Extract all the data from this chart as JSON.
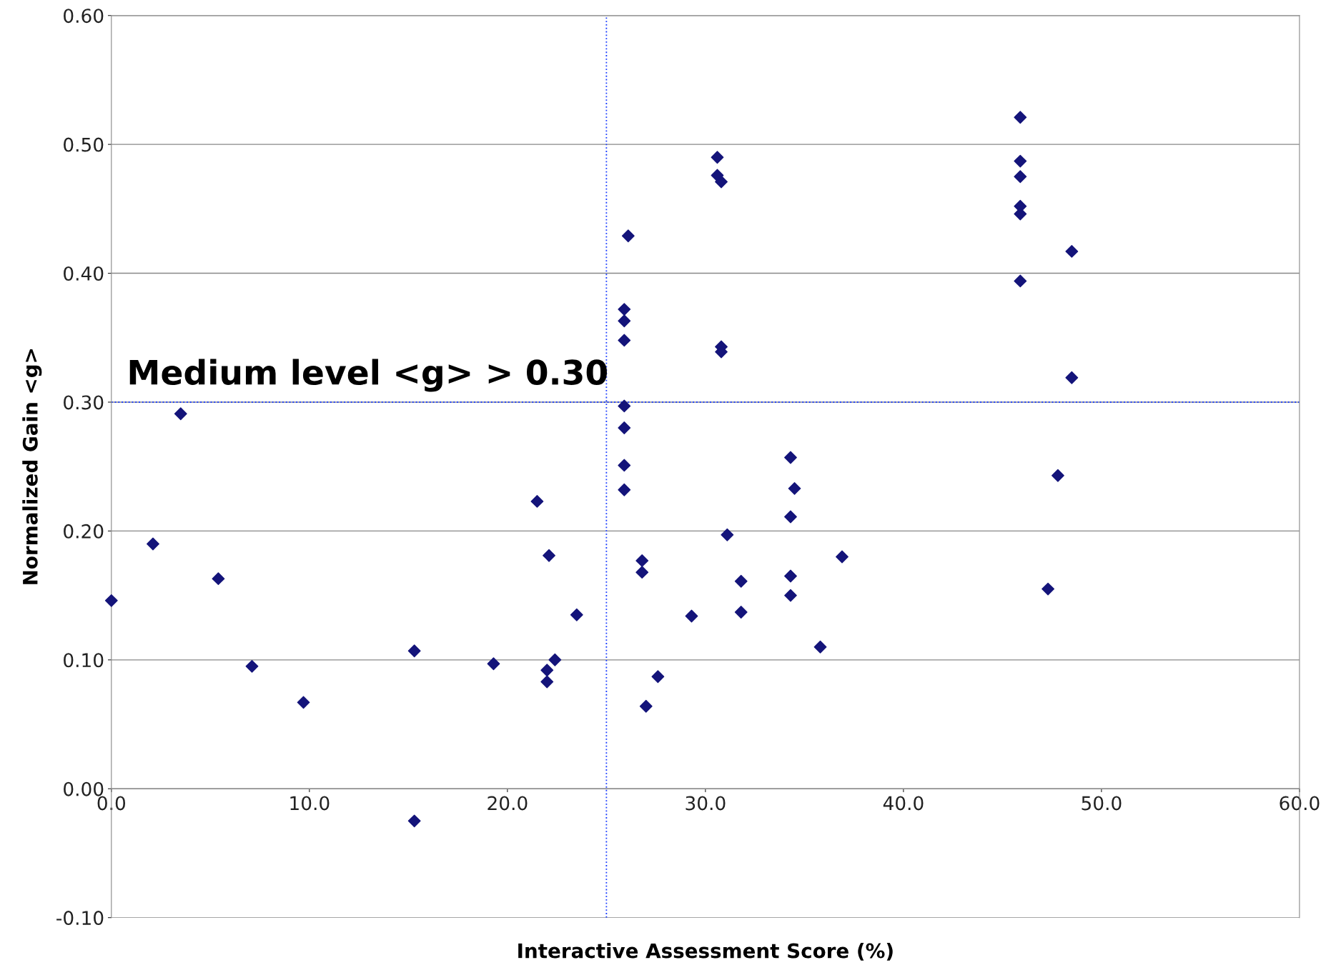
{
  "chart_data": {
    "type": "scatter",
    "xlabel": "Interactive Assessment Score (%)",
    "ylabel": "Normalized Gain <g>",
    "x": [
      0,
      2.1,
      3.5,
      5.4,
      7.1,
      9.7,
      15.3,
      15.3,
      19.3,
      21.5,
      22.1,
      22.0,
      22.0,
      22.4,
      23.5,
      26.1,
      25.9,
      25.9,
      25.9,
      25.9,
      25.9,
      25.9,
      25.9,
      26.8,
      26.8,
      27.0,
      27.6,
      29.3,
      30.6,
      30.6,
      30.7,
      30.8,
      30.8,
      30.8,
      31.1,
      31.8,
      31.8,
      34.3,
      34.5,
      34.3,
      34.3,
      34.3,
      35.8,
      36.9,
      45.9,
      45.9,
      45.9,
      45.9,
      45.9,
      45.9,
      48.5,
      48.5,
      47.8,
      47.3
    ],
    "values": [
      0.146,
      0.19,
      0.291,
      0.163,
      0.095,
      0.067,
      0.107,
      -0.025,
      0.097,
      0.223,
      0.181,
      0.092,
      0.083,
      0.1,
      0.135,
      0.429,
      0.372,
      0.363,
      0.348,
      0.297,
      0.28,
      0.251,
      0.232,
      0.177,
      0.168,
      0.064,
      0.087,
      0.134,
      0.49,
      0.476,
      null,
      0.471,
      0.343,
      0.339,
      0.197,
      0.161,
      0.137,
      0.257,
      0.233,
      0.211,
      0.165,
      0.15,
      0.11,
      0.18,
      0.521,
      0.487,
      0.475,
      0.452,
      0.446,
      0.394,
      0.417,
      0.319,
      0.243,
      0.155
    ],
    "color": "#14147a",
    "marker": "diamond",
    "xlim": [
      0,
      60
    ],
    "xticks": [
      {
        "value": 0,
        "label": "0.0"
      },
      {
        "value": 10,
        "label": "10.0"
      },
      {
        "value": 20,
        "label": "20.0"
      },
      {
        "value": 30,
        "label": "30.0"
      },
      {
        "value": 40,
        "label": "40.0"
      },
      {
        "value": 50,
        "label": "50.0"
      },
      {
        "value": 60,
        "label": "60.0"
      }
    ],
    "ylim": [
      -0.1,
      0.6
    ],
    "yticks": [
      {
        "value": -0.1,
        "label": "-0.10"
      },
      {
        "value": 0,
        "label": "0.00"
      },
      {
        "value": 0.1,
        "label": "0.10"
      },
      {
        "value": 0.2,
        "label": "0.20"
      },
      {
        "value": 0.3,
        "label": "0.30"
      },
      {
        "value": 0.4,
        "label": "0.40"
      },
      {
        "value": 0.5,
        "label": "0.50"
      },
      {
        "value": 0.6,
        "label": "0.60"
      }
    ],
    "grid": "y",
    "legend": false,
    "ref_lines": [
      {
        "axis": "y",
        "value": 0.3,
        "label": "Medium level <g> > 0.30",
        "color": "#1a3cff",
        "line_style": "dotted"
      },
      {
        "axis": "x",
        "value": 25,
        "label": null,
        "color": "#1a3cff",
        "line_style": "dotted"
      }
    ]
  }
}
